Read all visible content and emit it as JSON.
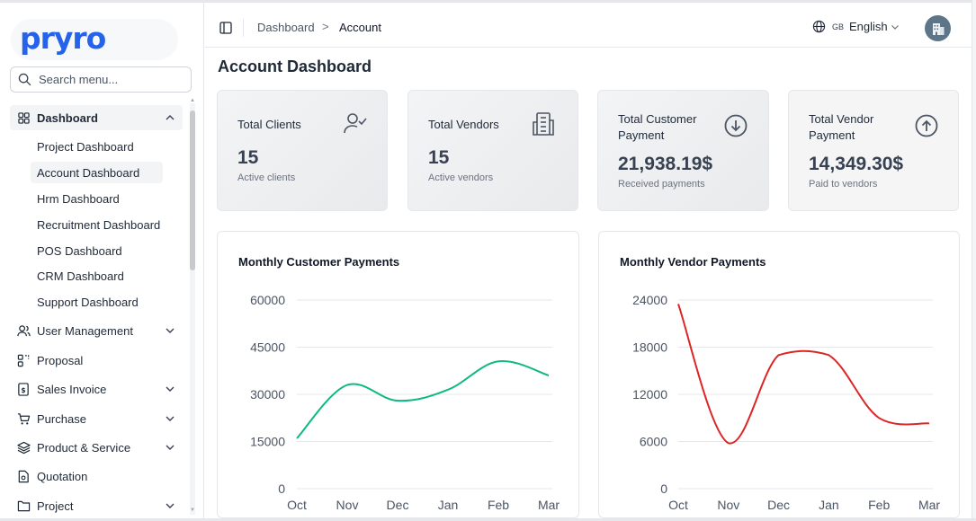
{
  "app": {
    "logo": "pryro"
  },
  "search": {
    "placeholder": "Search menu..."
  },
  "sidebar": {
    "dashboard": {
      "label": "Dashboard",
      "icon": "grid-icon"
    },
    "sub_items": [
      {
        "label": "Project Dashboard"
      },
      {
        "label": "Account Dashboard"
      },
      {
        "label": "Hrm Dashboard"
      },
      {
        "label": "Recruitment Dashboard"
      },
      {
        "label": "POS Dashboard"
      },
      {
        "label": "CRM Dashboard"
      },
      {
        "label": "Support Dashboard"
      }
    ],
    "items": [
      {
        "label": "User Management",
        "icon": "users-icon",
        "has_chevron": true
      },
      {
        "label": "Proposal",
        "icon": "proposal-icon",
        "has_chevron": false
      },
      {
        "label": "Sales Invoice",
        "icon": "invoice-icon",
        "has_chevron": true
      },
      {
        "label": "Purchase",
        "icon": "cart-icon",
        "has_chevron": true
      },
      {
        "label": "Product & Service",
        "icon": "layers-icon",
        "has_chevron": true
      },
      {
        "label": "Quotation",
        "icon": "quotation-icon",
        "has_chevron": false
      },
      {
        "label": "Project",
        "icon": "project-icon",
        "has_chevron": true
      }
    ]
  },
  "header": {
    "breadcrumb": [
      "Dashboard",
      "Account"
    ],
    "breadcrumb_separator": ">",
    "language_code": "GB",
    "language": "English"
  },
  "page": {
    "title": "Account Dashboard"
  },
  "cards": [
    {
      "title": "Total Clients",
      "value": "15",
      "subtitle": "Active clients",
      "icon": "user-check-icon"
    },
    {
      "title": "Total Vendors",
      "value": "15",
      "subtitle": "Active vendors",
      "icon": "building-icon"
    },
    {
      "title": "Total Customer Payment",
      "value": "21,938.19$",
      "subtitle": "Received payments",
      "icon": "arrow-down-circle-icon"
    },
    {
      "title": "Total Vendor Payment",
      "value": "14,349.30$",
      "subtitle": "Paid to vendors",
      "icon": "arrow-up-circle-icon"
    }
  ],
  "chart_data": [
    {
      "type": "line",
      "title": "Monthly Customer Payments",
      "categories": [
        "Oct",
        "Nov",
        "Dec",
        "Jan",
        "Feb",
        "Mar"
      ],
      "series": [
        {
          "values": [
            16000,
            33000,
            28000,
            31500,
            40500,
            36000
          ],
          "color": "#10b981"
        }
      ],
      "yticks": [
        0,
        15000,
        30000,
        45000,
        60000
      ],
      "ylim": [
        0,
        60000
      ],
      "grid": true
    },
    {
      "type": "line",
      "title": "Monthly Vendor Payments",
      "categories": [
        "Oct",
        "Nov",
        "Dec",
        "Jan",
        "Feb",
        "Mar"
      ],
      "series": [
        {
          "values": [
            23500,
            5800,
            17000,
            17000,
            9000,
            8300
          ],
          "color": "#dc2626"
        }
      ],
      "yticks": [
        0,
        6000,
        12000,
        18000,
        24000
      ],
      "ylim": [
        0,
        24000
      ],
      "grid": true
    }
  ]
}
